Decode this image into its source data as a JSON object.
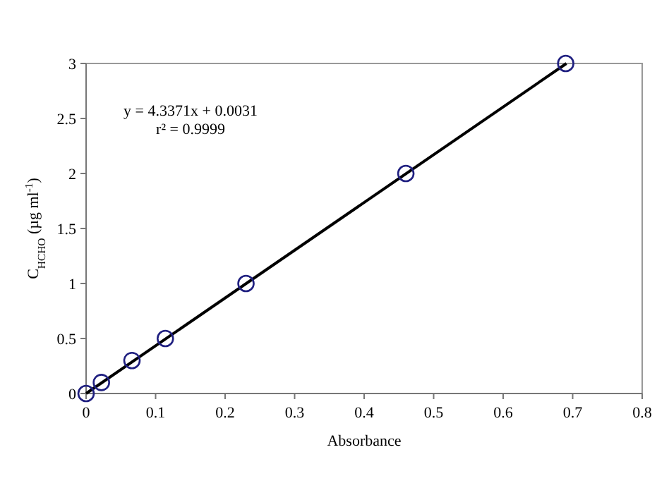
{
  "chart_data": {
    "type": "scatter",
    "xlabel": "Absorbance",
    "ylabel": "C$_{HCHO}$ (µg ml$^{-1}$)",
    "annotations": [
      "y = 4.3371x + 0.0031",
      "r² = 0.9999"
    ],
    "xlim": [
      0,
      0.8
    ],
    "xticks": [
      0,
      0.1,
      0.2,
      0.3,
      0.4,
      0.5,
      0.6,
      0.7,
      0.8
    ],
    "ylim": [
      0,
      3
    ],
    "yticks": [
      0,
      0.5,
      1,
      1.5,
      2,
      2.5,
      3
    ],
    "grid": false,
    "marker": "circle",
    "series": [
      {
        "type": "line",
        "color": "#000000",
        "x": [
          0,
          0.691
        ],
        "values": [
          0,
          3
        ],
        "marker": "none",
        "line_style": "solid"
      },
      {
        "color": "#1f1f80",
        "x": [
          0,
          0.022,
          0.066,
          0.114,
          0.23,
          0.46,
          0.69
        ],
        "values": [
          0,
          0.1,
          0.3,
          0.5,
          1,
          2,
          3
        ]
      }
    ]
  }
}
